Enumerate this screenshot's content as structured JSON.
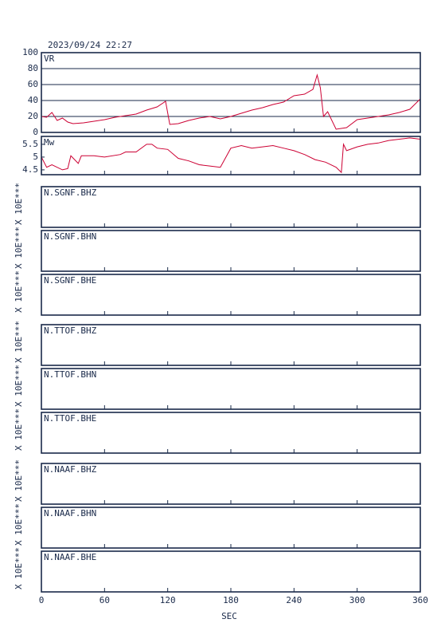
{
  "chart_data": [
    {
      "type": "line",
      "title": "2023/09/24 22:27",
      "label": "VR",
      "xlim": [
        0,
        360
      ],
      "xticks": [
        0,
        60,
        120,
        180,
        240,
        300,
        360
      ],
      "ylim": [
        0,
        100
      ],
      "yticks": [
        0,
        20,
        40,
        60,
        80,
        100
      ],
      "grid": true,
      "x": [
        0,
        5,
        10,
        15,
        20,
        25,
        30,
        40,
        50,
        60,
        70,
        80,
        90,
        100,
        110,
        118,
        122,
        130,
        140,
        150,
        160,
        170,
        180,
        190,
        200,
        210,
        220,
        230,
        240,
        250,
        258,
        262,
        265,
        268,
        272,
        280,
        290,
        300,
        310,
        320,
        330,
        340,
        350,
        360
      ],
      "series": [
        {
          "color": "#cc0033",
          "values": [
            20,
            19,
            25,
            15,
            18,
            13,
            11,
            12,
            14,
            16,
            19,
            21,
            23,
            28,
            32,
            39,
            10,
            11,
            15,
            18,
            20,
            17,
            20,
            24,
            28,
            31,
            35,
            38,
            46,
            48,
            54,
            72,
            56,
            20,
            26,
            4,
            6,
            16,
            18,
            20,
            22,
            25,
            29,
            42
          ]
        }
      ]
    },
    {
      "type": "line",
      "label": "Mw",
      "xlim": [
        0,
        360
      ],
      "xticks": [
        0,
        60,
        120,
        180,
        240,
        300,
        360
      ],
      "ylim": [
        4.31,
        5.81
      ],
      "yticks": [
        4.5,
        5.0,
        5.5
      ],
      "grid": false,
      "x": [
        0,
        5,
        10,
        20,
        25,
        28,
        35,
        38,
        50,
        60,
        75,
        80,
        90,
        100,
        105,
        110,
        120,
        130,
        140,
        150,
        160,
        170,
        180,
        190,
        200,
        210,
        220,
        230,
        240,
        250,
        260,
        270,
        280,
        285,
        287,
        290,
        300,
        310,
        320,
        330,
        340,
        350,
        360
      ],
      "series": [
        {
          "color": "#cc0033",
          "values": [
            5.0,
            4.6,
            4.7,
            4.5,
            4.55,
            5.05,
            4.75,
            5.05,
            5.05,
            5.0,
            5.1,
            5.2,
            5.2,
            5.5,
            5.5,
            5.35,
            5.3,
            4.95,
            4.85,
            4.7,
            4.65,
            4.6,
            5.35,
            5.45,
            5.35,
            5.4,
            5.45,
            5.35,
            5.25,
            5.1,
            4.9,
            4.8,
            4.6,
            4.4,
            5.5,
            5.25,
            5.4,
            5.5,
            5.55,
            5.65,
            5.7,
            5.75,
            5.7
          ]
        }
      ]
    },
    {
      "type": "empty",
      "label": "N.SGNF.BHZ",
      "scale_label": "X 10E***",
      "xlim": [
        0,
        360
      ],
      "xticks": [
        0,
        60,
        120,
        180,
        240,
        300,
        360
      ]
    },
    {
      "type": "empty",
      "label": "N.SGNF.BHN",
      "scale_label": "X 10E***",
      "xlim": [
        0,
        360
      ],
      "xticks": [
        0,
        60,
        120,
        180,
        240,
        300,
        360
      ]
    },
    {
      "type": "empty",
      "label": "N.SGNF.BHE",
      "scale_label": "X 10E***",
      "xlim": [
        0,
        360
      ],
      "xticks": [
        0,
        60,
        120,
        180,
        240,
        300,
        360
      ]
    },
    {
      "type": "empty",
      "label": "N.TTOF.BHZ",
      "scale_label": "X 10E***",
      "xlim": [
        0,
        360
      ],
      "xticks": [
        0,
        60,
        120,
        180,
        240,
        300,
        360
      ]
    },
    {
      "type": "empty",
      "label": "N.TTOF.BHN",
      "scale_label": "X 10E***",
      "xlim": [
        0,
        360
      ],
      "xticks": [
        0,
        60,
        120,
        180,
        240,
        300,
        360
      ]
    },
    {
      "type": "empty",
      "label": "N.TTOF.BHE",
      "scale_label": "X 10E***",
      "xlim": [
        0,
        360
      ],
      "xticks": [
        0,
        60,
        120,
        180,
        240,
        300,
        360
      ]
    },
    {
      "type": "empty",
      "label": "N.NAAF.BHZ",
      "scale_label": "X 10E***",
      "xlim": [
        0,
        360
      ],
      "xticks": [
        0,
        60,
        120,
        180,
        240,
        300,
        360
      ]
    },
    {
      "type": "empty",
      "label": "N.NAAF.BHN",
      "scale_label": "X 10E***",
      "xlim": [
        0,
        360
      ],
      "xticks": [
        0,
        60,
        120,
        180,
        240,
        300,
        360
      ]
    },
    {
      "type": "empty",
      "label": "N.NAAF.BHE",
      "scale_label": "X 10E***",
      "xlim": [
        0,
        360
      ],
      "xticks": [
        0,
        60,
        120,
        180,
        240,
        300,
        360
      ],
      "xlabel": "SEC"
    }
  ]
}
